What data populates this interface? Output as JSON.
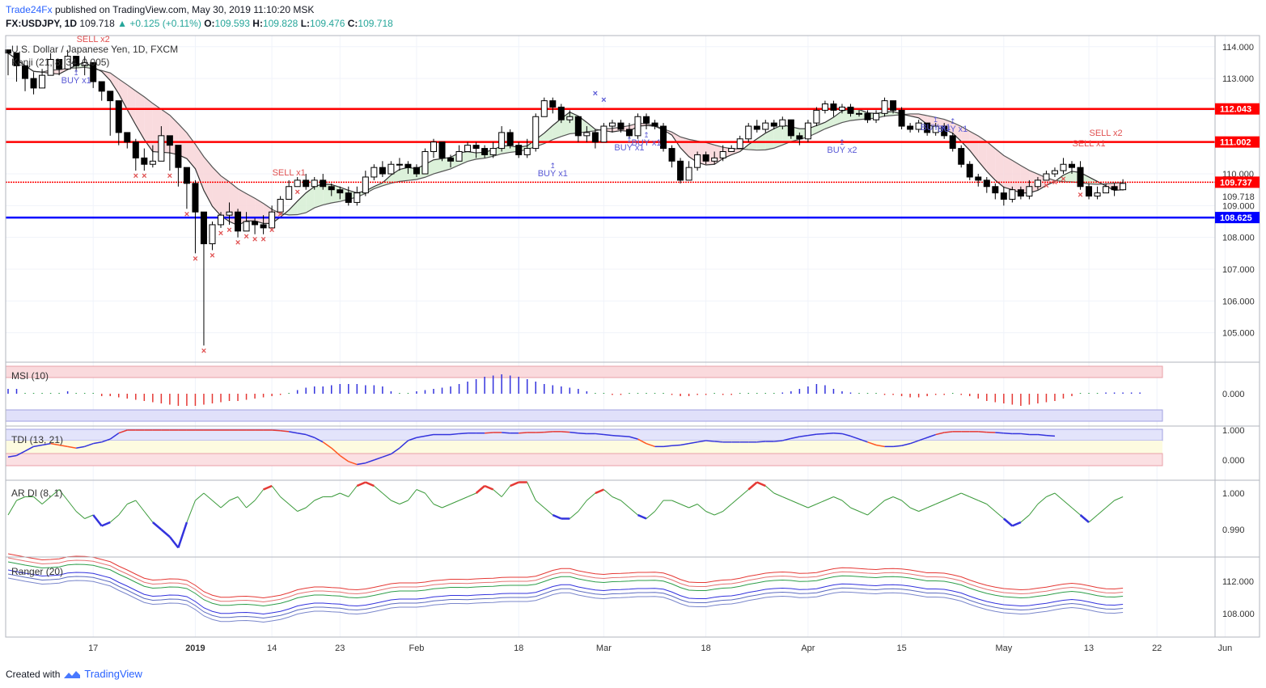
{
  "header": {
    "publisher": "Trade24Fx",
    "published_text": "published on TradingView.com, May 30, 2019 11:10:20 MSK",
    "symbol": "FX:USDJPY, 1D",
    "last": "109.718",
    "change": "+0.125 (+0.11%)",
    "o_label": "O:",
    "o": "109.593",
    "h_label": "H:",
    "h": "109.828",
    "l_label": "L:",
    "l": "109.476",
    "c_label": "C:",
    "c": "109.718"
  },
  "footer": {
    "created_with": "Created with",
    "tradingview": "TradingView"
  },
  "colors": {
    "candle_up": "#ffffff",
    "candle_down": "#000000",
    "resistance": "#ff0000",
    "support": "#0000ff",
    "buy": "#5b5bd6",
    "sell": "#e05050",
    "cloud_bear": "#f8d7da",
    "cloud_bull": "#d8f0d6"
  },
  "chart_data": [
    {
      "type": "candlestick",
      "pane": "main",
      "title": "U.S. Dollar / Japanese Yen, 1D, FXCM",
      "indicator_label": "Kenji (21, 8, 34, 0.005)",
      "ylim": [
        104.1,
        114.35
      ],
      "y_ticks": [
        "114.000",
        "113.000",
        "112.000",
        "111.000",
        "110.000",
        "109.000",
        "108.000",
        "107.000",
        "106.000",
        "105.000"
      ],
      "extra_tick": "109.718",
      "x_ticks": [
        "17",
        "2019",
        "14",
        "23",
        "Feb",
        "18",
        "Mar",
        "18",
        "Apr",
        "15",
        "May",
        "13",
        "22",
        "Jun"
      ],
      "levels": [
        {
          "value": 112.043,
          "label": "112.043",
          "kind": "resistance"
        },
        {
          "value": 111.002,
          "label": "111.002",
          "kind": "resistance"
        },
        {
          "value": 109.737,
          "label": "109.737",
          "kind": "current"
        },
        {
          "value": 108.625,
          "label": "108.625",
          "kind": "support"
        }
      ],
      "close": [
        113.8,
        113.4,
        113.0,
        112.7,
        113.1,
        113.6,
        113.3,
        113.7,
        113.4,
        113.5,
        112.9,
        112.6,
        112.3,
        111.3,
        111.0,
        110.5,
        110.3,
        110.4,
        111.2,
        110.9,
        110.2,
        109.7,
        108.8,
        107.8,
        108.4,
        108.7,
        108.8,
        108.2,
        108.5,
        108.4,
        108.3,
        108.8,
        109.2,
        109.6,
        109.8,
        109.6,
        109.8,
        109.6,
        109.5,
        109.4,
        109.1,
        109.4,
        109.9,
        110.2,
        110.0,
        110.3,
        110.3,
        110.2,
        110.0,
        110.7,
        111.0,
        110.5,
        110.4,
        110.7,
        110.9,
        110.8,
        110.6,
        110.8,
        111.3,
        110.9,
        110.6,
        110.8,
        111.8,
        112.3,
        112.1,
        111.7,
        111.8,
        111.2,
        111.3,
        111.0,
        111.5,
        111.6,
        111.4,
        111.2,
        111.8,
        111.6,
        111.5,
        110.8,
        110.4,
        109.8,
        110.2,
        110.6,
        110.4,
        110.5,
        110.7,
        110.8,
        111.1,
        111.5,
        111.4,
        111.6,
        111.5,
        111.7,
        111.2,
        111.1,
        111.6,
        112.0,
        112.2,
        112.0,
        112.1,
        111.9,
        111.9,
        111.7,
        111.9,
        112.3,
        112.0,
        111.5,
        111.4,
        111.6,
        111.3,
        111.5,
        111.2,
        110.8,
        110.3,
        109.9,
        109.8,
        109.6,
        109.4,
        109.2,
        109.5,
        109.3,
        109.6,
        109.8,
        110.0,
        110.1,
        110.3,
        110.2,
        109.6,
        109.3,
        109.4,
        109.6,
        109.5,
        109.7
      ],
      "high": [
        113.9,
        113.6,
        113.3,
        113.2,
        113.3,
        113.8,
        113.5,
        113.9,
        113.6,
        113.7,
        113.3,
        112.9,
        112.6,
        112.2,
        111.3,
        111.1,
        110.8,
        110.9,
        111.5,
        111.2,
        110.5,
        110.2,
        109.8,
        108.4,
        108.5,
        108.8,
        109.1,
        108.9,
        108.8,
        108.6,
        108.7,
        109.0,
        109.3,
        109.8,
        109.9,
        110.0,
        109.9,
        110.0,
        109.7,
        109.6,
        109.6,
        109.6,
        110.1,
        110.3,
        110.4,
        110.4,
        110.5,
        110.4,
        110.3,
        110.8,
        111.1,
        111.0,
        110.6,
        110.9,
        111.0,
        111.0,
        110.9,
        111.0,
        111.5,
        111.4,
        111.0,
        111.1,
        111.9,
        112.4,
        112.4,
        112.2,
        112.0,
        111.8,
        111.5,
        111.4,
        111.6,
        111.7,
        111.7,
        111.6,
        111.9,
        111.9,
        111.7,
        111.6,
        110.9,
        110.5,
        110.4,
        110.7,
        110.7,
        110.7,
        110.9,
        110.9,
        111.2,
        111.6,
        111.7,
        111.7,
        111.7,
        111.8,
        111.7,
        111.3,
        111.7,
        112.1,
        112.3,
        112.3,
        112.2,
        112.2,
        112.0,
        112.0,
        112.0,
        112.4,
        112.3,
        112.1,
        111.6,
        111.7,
        111.6,
        111.6,
        111.6,
        111.3,
        110.9,
        110.4,
        110.0,
        109.9,
        109.7,
        109.6,
        109.6,
        109.6,
        109.8,
        109.9,
        110.1,
        110.2,
        110.5,
        110.4,
        110.4,
        109.7,
        109.6,
        109.7,
        109.7,
        109.83
      ],
      "low": [
        113.1,
        112.9,
        112.6,
        112.5,
        112.9,
        113.2,
        113.1,
        113.4,
        113.2,
        113.1,
        112.7,
        112.3,
        111.2,
        110.9,
        110.8,
        110.1,
        110.1,
        110.2,
        111.0,
        110.1,
        109.6,
        108.9,
        107.5,
        104.6,
        107.6,
        108.3,
        108.4,
        108.0,
        108.2,
        108.1,
        108.1,
        108.4,
        108.9,
        109.5,
        109.6,
        109.5,
        109.5,
        109.5,
        109.3,
        109.2,
        109.0,
        109.0,
        109.3,
        109.8,
        109.9,
        110.0,
        110.1,
        110.0,
        109.9,
        110.0,
        110.5,
        110.4,
        110.2,
        110.4,
        110.7,
        110.5,
        110.5,
        110.5,
        110.7,
        110.8,
        110.5,
        110.5,
        110.7,
        111.8,
        111.9,
        111.6,
        111.6,
        111.0,
        111.0,
        110.8,
        111.2,
        111.3,
        111.3,
        111.1,
        111.1,
        111.4,
        111.4,
        110.7,
        110.2,
        109.7,
        109.8,
        110.1,
        110.3,
        110.3,
        110.4,
        110.7,
        110.8,
        111.0,
        111.3,
        111.3,
        111.4,
        111.4,
        111.1,
        110.9,
        111.0,
        111.5,
        111.9,
        111.8,
        111.9,
        111.8,
        111.8,
        111.6,
        111.6,
        111.8,
        111.9,
        111.4,
        111.3,
        111.3,
        111.2,
        111.2,
        111.1,
        110.7,
        110.2,
        109.8,
        109.6,
        109.4,
        109.2,
        109.0,
        109.1,
        109.2,
        109.2,
        109.5,
        109.8,
        109.9,
        110.0,
        110.0,
        109.5,
        109.2,
        109.2,
        109.4,
        109.3,
        109.476
      ],
      "bull_arrows": [
        "BUY x1",
        "BUY x1",
        "BUY x1",
        "BUY x1",
        "BUY x2",
        "BUY x1",
        "BUY x1"
      ],
      "bear_arrows": [
        "SELL x2",
        "SELL x1",
        "SELL x1",
        "SELL x2"
      ]
    },
    {
      "type": "histogram",
      "pane": "msi",
      "title": "MSI (10)",
      "y_ticks": [
        "0.000"
      ],
      "values": [
        0.2,
        0.2,
        0,
        0,
        0,
        0,
        0,
        0.1,
        0,
        0,
        0,
        -0.1,
        -0.1,
        -0.15,
        -0.2,
        -0.25,
        -0.3,
        -0.35,
        -0.4,
        -0.45,
        -0.5,
        -0.5,
        -0.5,
        -0.45,
        -0.4,
        -0.35,
        -0.3,
        -0.3,
        -0.25,
        -0.2,
        -0.15,
        -0.1,
        -0.05,
        0,
        0.15,
        0.25,
        0.3,
        0.3,
        0.35,
        0.4,
        0.4,
        0.4,
        0.35,
        0.35,
        0.3,
        0.1,
        0,
        0,
        0.1,
        0.15,
        0.2,
        0.25,
        0.3,
        0.4,
        0.5,
        0.6,
        0.7,
        0.75,
        0.8,
        0.75,
        0.7,
        0.6,
        0.5,
        0.4,
        0.35,
        0.3,
        0.25,
        0.2,
        0.1,
        0,
        0,
        -0.05,
        -0.05,
        0,
        0,
        0,
        0,
        0,
        -0.05,
        -0.1,
        -0.1,
        -0.05,
        -0.05,
        0,
        -0.05,
        -0.05,
        0,
        0,
        0,
        0,
        0,
        0.05,
        0.1,
        0.2,
        0.3,
        0.4,
        0.35,
        0.2,
        0.1,
        0.05,
        0,
        0,
        0,
        -0.05,
        -0.05,
        -0.1,
        -0.15,
        -0.15,
        -0.1,
        -0.05,
        -0.05,
        0,
        -0.05,
        -0.1,
        -0.2,
        -0.3,
        -0.35,
        -0.4,
        -0.45,
        -0.5,
        -0.45,
        -0.4,
        -0.35,
        -0.3,
        -0.2,
        -0.1,
        0,
        0,
        0,
        0.05,
        0.05,
        0.05,
        0.05,
        0.05
      ]
    },
    {
      "type": "line",
      "pane": "tdi",
      "title": "TDI (13, 21)",
      "y_ticks": [
        "1.000",
        "0.000"
      ],
      "values": [
        0.1,
        0.15,
        0.3,
        0.45,
        0.5,
        0.55,
        0.5,
        0.45,
        0.4,
        0.45,
        0.55,
        0.6,
        0.7,
        0.9,
        1,
        1,
        1,
        1,
        1,
        1,
        1,
        1,
        1,
        1,
        1,
        1,
        1,
        1,
        1,
        1,
        1,
        1,
        0.98,
        0.95,
        0.9,
        0.85,
        0.75,
        0.6,
        0.4,
        0.15,
        -0.05,
        -0.15,
        -0.1,
        0,
        0.1,
        0.2,
        0.4,
        0.65,
        0.75,
        0.8,
        0.85,
        0.85,
        0.85,
        0.88,
        0.9,
        0.9,
        0.9,
        0.92,
        0.92,
        0.9,
        0.9,
        0.92,
        0.92,
        0.93,
        0.95,
        0.95,
        0.93,
        0.9,
        0.88,
        0.88,
        0.85,
        0.82,
        0.8,
        0.78,
        0.7,
        0.55,
        0.45,
        0.45,
        0.48,
        0.5,
        0.55,
        0.6,
        0.65,
        0.62,
        0.6,
        0.6,
        0.6,
        0.6,
        0.6,
        0.62,
        0.62,
        0.65,
        0.72,
        0.78,
        0.82,
        0.86,
        0.88,
        0.9,
        0.88,
        0.8,
        0.7,
        0.6,
        0.5,
        0.45,
        0.45,
        0.48,
        0.55,
        0.65,
        0.75,
        0.85,
        0.92,
        0.95,
        0.95,
        0.95,
        0.95,
        0.93,
        0.92,
        0.9,
        0.88,
        0.88,
        0.85,
        0.85,
        0.82,
        0.8
      ]
    },
    {
      "type": "line",
      "pane": "ardi",
      "title": "AR DI (8, 1)",
      "y_ticks": [
        "1.000",
        "0.990"
      ],
      "values": [
        0.994,
        0.998,
        0.999,
        0.999,
        0.997,
        0.999,
        1.001,
        0.998,
        0.995,
        0.993,
        0.994,
        0.991,
        0.992,
        0.994,
        0.997,
        0.998,
        0.995,
        0.992,
        0.99,
        0.988,
        0.985,
        0.992,
        0.998,
        1.0,
        0.998,
        0.996,
        0.998,
        0.999,
        0.996,
        0.998,
        1.001,
        1.002,
        0.999,
        0.997,
        0.995,
        0.996,
        0.998,
        0.999,
        0.999,
        1.0,
        0.999,
        1.002,
        1.003,
        1.002,
        1.0,
        0.998,
        0.997,
        0.998,
        1.001,
        1.0,
        0.997,
        0.996,
        0.997,
        0.998,
        0.999,
        1.0,
        1.002,
        1.001,
        0.999,
        1.002,
        1.003,
        1.003,
        0.998,
        0.996,
        0.994,
        0.993,
        0.993,
        0.995,
        0.998,
        1.0,
        1.001,
        0.999,
        0.998,
        0.996,
        0.994,
        0.993,
        0.995,
        0.998,
        0.998,
        0.997,
        0.996,
        0.997,
        0.995,
        0.994,
        0.995,
        0.997,
        0.999,
        1.001,
        1.003,
        1.002,
        1.0,
        0.999,
        0.998,
        0.997,
        0.996,
        0.997,
        0.998,
        0.999,
        0.998,
        0.996,
        0.995,
        0.994,
        0.996,
        0.998,
        0.999,
        0.998,
        0.996,
        0.995,
        0.996,
        0.997,
        0.998,
        0.999,
        1.0,
        0.999,
        0.998,
        0.997,
        0.995,
        0.993,
        0.991,
        0.992,
        0.994,
        0.997,
        0.999,
        1.0,
        0.998,
        0.996,
        0.994,
        0.992,
        0.994,
        0.996,
        0.998,
        0.999
      ]
    },
    {
      "type": "line",
      "pane": "ranger",
      "title": "Ranger (20)",
      "y_ticks": [
        "112.000",
        "108.000"
      ],
      "series_count": 6
    }
  ]
}
